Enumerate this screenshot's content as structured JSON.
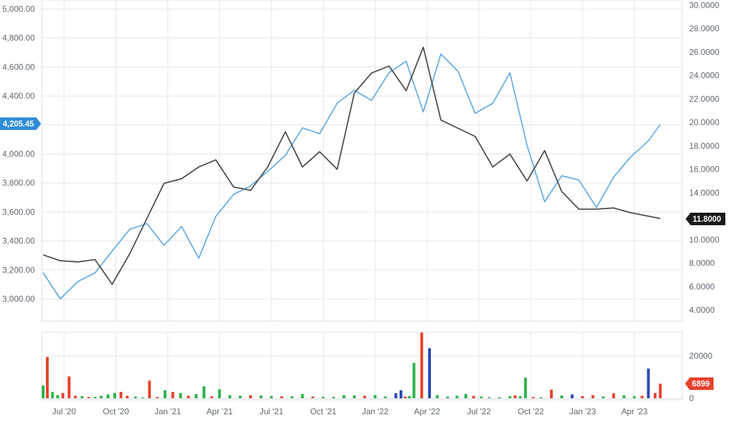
{
  "chart_data": {
    "type": "line",
    "x_tick_labels": [
      "Jul '20",
      "Oct '20",
      "Jan '21",
      "Apr '21",
      "Jul '21",
      "Oct '21",
      "Jan '22",
      "Apr '22",
      "Jul '22",
      "Oct '22",
      "Jan '23",
      "Apr '23"
    ],
    "left_axis": {
      "ylim": [
        2800,
        5000
      ],
      "tick_values": [
        3000,
        3200,
        3400,
        3600,
        3800,
        4000,
        4200,
        4400,
        4600,
        4800,
        5000
      ],
      "tick_labels": [
        "3,000.00",
        "3,200.00",
        "3,400.00",
        "3,600.00",
        "3,800.00",
        "4,000.00",
        "4,200.00",
        "4,400.00",
        "4,600.00",
        "4,800.00",
        "5,000.00"
      ]
    },
    "right_axis": {
      "ylim": [
        3,
        30
      ],
      "tick_values": [
        4,
        6,
        8,
        10,
        12,
        14,
        16,
        18,
        20,
        22,
        24,
        26,
        28,
        30
      ],
      "tick_labels": [
        "4.0000",
        "6.0000",
        "8.0000",
        "10.0000",
        "12.0000",
        "14.0000",
        "16.0000",
        "18.0000",
        "20.0000",
        "22.0000",
        "24.0000",
        "26.0000",
        "28.0000",
        "30.0000"
      ]
    },
    "volume_axis": {
      "ylim": [
        0,
        30000
      ],
      "tick_values": [
        0,
        20000
      ],
      "tick_labels": [
        "0",
        "20000"
      ]
    },
    "last_value_tags": {
      "primary": "4,205.45",
      "secondary": "11.8000",
      "volume": "6899"
    },
    "colors": {
      "primary_line": "#5aa7e0",
      "secondary_line": "#4d4d4d",
      "vol_up": "#2cb34a",
      "vol_down": "#e8412c",
      "vol_blue": "#2a48b0",
      "primary_tag": "#2f8bd8",
      "secondary_tag": "#1a1a1a",
      "volume_tag": "#e8412c"
    },
    "series": [
      {
        "axis": "left",
        "x": [
          0,
          0.33,
          0.67,
          1,
          1.33,
          1.67,
          2,
          2.33,
          2.67,
          3,
          3.33,
          3.67,
          4,
          4.33,
          4.67,
          5,
          5.33,
          5.67,
          6,
          6.33,
          6.67,
          7,
          7.33,
          7.67,
          8,
          8.33,
          8.67,
          9,
          9.33,
          9.67,
          10,
          10.33,
          10.67,
          11,
          11.33,
          11.67,
          11.9
        ],
        "y": [
          3180,
          3000,
          3120,
          3180,
          3330,
          3480,
          3520,
          3370,
          3500,
          3280,
          3570,
          3720,
          3780,
          3880,
          3990,
          4180,
          4140,
          4350,
          4440,
          4370,
          4560,
          4640,
          4290,
          4690,
          4570,
          4280,
          4350,
          4560,
          4060,
          3670,
          3850,
          3820,
          3630,
          3840,
          3980,
          4090,
          4205
        ]
      },
      {
        "axis": "right",
        "x": [
          0,
          0.33,
          0.67,
          1,
          1.33,
          1.67,
          2,
          2.33,
          2.67,
          3,
          3.33,
          3.67,
          4,
          4.33,
          4.67,
          5,
          5.33,
          5.67,
          6,
          6.33,
          6.67,
          7,
          7.33,
          7.67,
          8,
          8.33,
          8.67,
          9,
          9.33,
          9.67,
          10,
          10.33,
          10.67,
          11,
          11.33,
          11.67,
          11.9
        ],
        "y": [
          8.7,
          8.2,
          8.1,
          8.3,
          6.2,
          8.8,
          11.8,
          14.8,
          15.2,
          16.2,
          16.8,
          14.5,
          14.2,
          16.2,
          19.2,
          16.2,
          17.5,
          16.0,
          22.5,
          24.2,
          24.8,
          22.7,
          26.4,
          20.2,
          19.5,
          18.8,
          16.2,
          17.3,
          15.0,
          17.6,
          14.1,
          12.6,
          12.6,
          12.7,
          12.3,
          12.0,
          11.8
        ]
      }
    ],
    "volume": {
      "x": [
        0,
        0.08,
        0.18,
        0.28,
        0.38,
        0.5,
        0.62,
        0.75,
        0.88,
        1.0,
        1.12,
        1.25,
        1.38,
        1.5,
        1.62,
        1.78,
        1.92,
        2.05,
        2.2,
        2.35,
        2.5,
        2.65,
        2.8,
        2.95,
        3.1,
        3.25,
        3.4,
        3.6,
        3.8,
        4.0,
        4.2,
        4.4,
        4.6,
        4.8,
        5.0,
        5.2,
        5.4,
        5.6,
        5.8,
        6.0,
        6.2,
        6.4,
        6.6,
        6.8,
        6.9,
        6.98,
        7.06,
        7.15,
        7.3,
        7.45,
        7.6,
        7.8,
        7.98,
        8.15,
        8.3,
        8.45,
        8.6,
        8.8,
        9.0,
        9.1,
        9.2,
        9.3,
        9.45,
        9.6,
        9.8,
        10.0,
        10.2,
        10.4,
        10.6,
        10.8,
        11.0,
        11.2,
        11.4,
        11.55,
        11.67,
        11.8,
        11.9
      ],
      "values": [
        6000,
        19500,
        3000,
        1500,
        2500,
        10300,
        1200,
        1000,
        600,
        600,
        1200,
        1800,
        2500,
        3000,
        1200,
        800,
        400,
        8300,
        600,
        3800,
        3000,
        2500,
        1200,
        2000,
        5600,
        900,
        4300,
        1500,
        1200,
        1400,
        1300,
        1000,
        900,
        900,
        2000,
        800,
        700,
        600,
        1500,
        1300,
        1200,
        1500,
        800,
        2400,
        3800,
        800,
        1000,
        16700,
        31000,
        23600,
        1500,
        800,
        1200,
        2000,
        1100,
        800,
        500,
        500,
        1000,
        1400,
        1000,
        9700,
        600,
        500,
        4100,
        1300,
        1800,
        1000,
        1500,
        900,
        2400,
        1400,
        1000,
        1200,
        14000,
        2500,
        6899
      ],
      "colors": [
        "u",
        "d",
        "u",
        "u",
        "d",
        "d",
        "d",
        "u",
        "d",
        "u",
        "u",
        "u",
        "u",
        "d",
        "d",
        "u",
        "u",
        "d",
        "d",
        "u",
        "d",
        "u",
        "d",
        "u",
        "u",
        "d",
        "u",
        "u",
        "u",
        "d",
        "u",
        "u",
        "d",
        "u",
        "u",
        "d",
        "u",
        "u",
        "u",
        "u",
        "d",
        "u",
        "u",
        "b",
        "b",
        "d",
        "u",
        "u",
        "d",
        "b",
        "u",
        "u",
        "u",
        "u",
        "d",
        "u",
        "u",
        "u",
        "u",
        "d",
        "u",
        "u",
        "d",
        "u",
        "d",
        "u",
        "b",
        "d",
        "d",
        "u",
        "d",
        "u",
        "u",
        "d",
        "b",
        "d",
        "d"
      ]
    }
  }
}
